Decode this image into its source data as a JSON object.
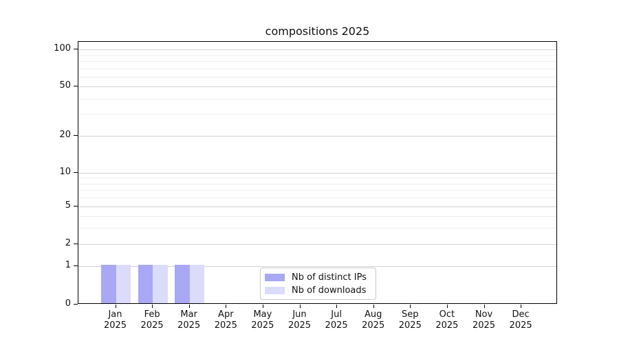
{
  "chart_data": {
    "type": "bar",
    "title": "compositions 2025",
    "categories": [
      "Jan",
      "Feb",
      "Mar",
      "Apr",
      "May",
      "Jun",
      "Jul",
      "Aug",
      "Sep",
      "Oct",
      "Nov",
      "Dec"
    ],
    "category_year": "2025",
    "series": [
      {
        "name": "Nb of distinct IPs",
        "color": "#a8a8f4",
        "values": [
          1,
          1,
          1,
          0,
          0,
          0,
          0,
          0,
          0,
          0,
          0,
          0
        ]
      },
      {
        "name": "Nb of downloads",
        "color": "#dbdbfa",
        "values": [
          1,
          1,
          1,
          0,
          0,
          0,
          0,
          0,
          0,
          0,
          0,
          0
        ]
      }
    ],
    "y_axis": {
      "scale": "log-like",
      "major_ticks": [
        0,
        1,
        2,
        5,
        10,
        20,
        50,
        100
      ],
      "minor_ticks": [
        3,
        4,
        6,
        7,
        8,
        9,
        30,
        40,
        60,
        70,
        80,
        90
      ]
    },
    "legend_position": "lower center",
    "grid": "horizontal"
  },
  "colors": {
    "major_grid": "#d2d2d2",
    "minor_grid": "#ededed",
    "axis": "#000000",
    "text": "#111111",
    "legend_border": "#c8c8c8",
    "background": "#ffffff"
  }
}
